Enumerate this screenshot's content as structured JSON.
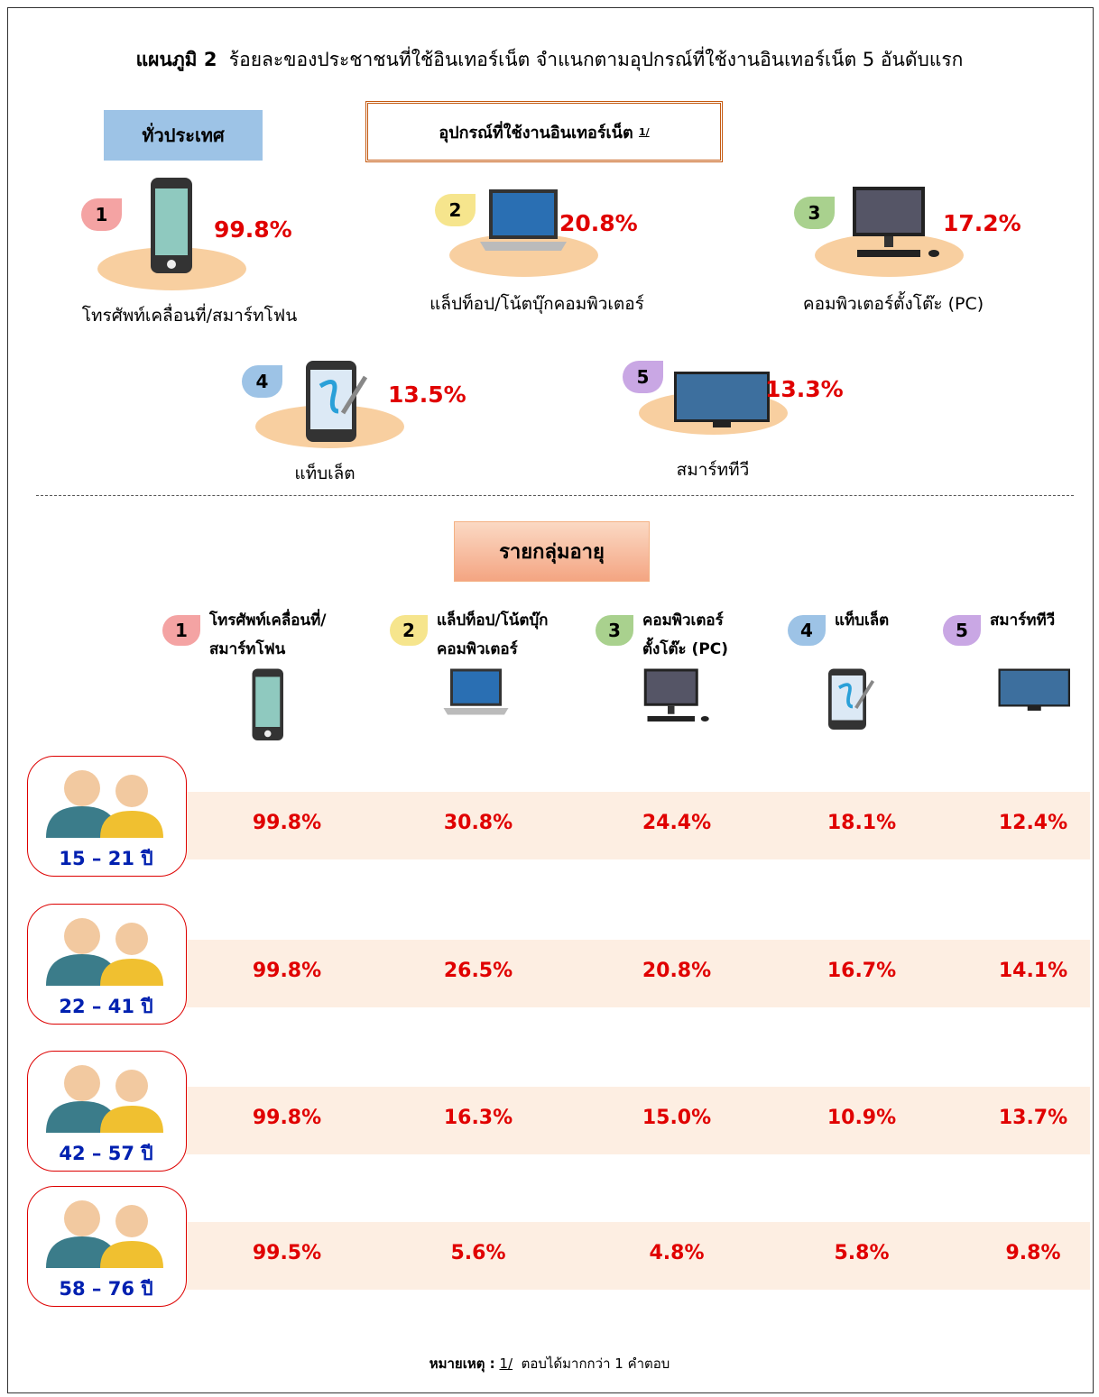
{
  "title": {
    "prefix": "แผนภูมิ 2",
    "text": "ร้อยละของประชาชนที่ใช้อินเทอร์เน็ต  จำแนกตามอุปกรณ์ที่ใช้งานอินเทอร์เน็ต 5 อันดับแรก"
  },
  "national": {
    "label": "ทั่วประเทศ",
    "header": "อุปกรณ์ที่ใช้งานอินเทอร์เน็ต",
    "header_note": "1/",
    "items": [
      {
        "rank": "1",
        "value": "99.8%",
        "name": "โทรศัพท์เคลื่อนที่/สมาร์ทโฟน"
      },
      {
        "rank": "2",
        "value": "20.8%",
        "name": "แล็ปท็อป/โน้ตบุ๊กคอมพิวเตอร์"
      },
      {
        "rank": "3",
        "value": "17.2%",
        "name": "คอมพิวเตอร์ตั้งโต๊ะ (PC)"
      },
      {
        "rank": "4",
        "value": "13.5%",
        "name": "แท็บเล็ต"
      },
      {
        "rank": "5",
        "value": "13.3%",
        "name": "สมาร์ททีวี"
      }
    ]
  },
  "age": {
    "label": "รายกลุ่มอายุ",
    "columns": [
      {
        "rank": "1",
        "name": [
          "โทรศัพท์เคลื่อนที่/",
          "สมาร์ทโฟน"
        ]
      },
      {
        "rank": "2",
        "name": [
          "แล็ปท็อป/โน้ตบุ๊ก",
          "คอมพิวเตอร์"
        ]
      },
      {
        "rank": "3",
        "name": [
          "คอมพิวเตอร์",
          "ตั้งโต๊ะ (PC)"
        ]
      },
      {
        "rank": "4",
        "name": [
          "แท็บเล็ต"
        ]
      },
      {
        "rank": "5",
        "name": [
          "สมาร์ททีวี"
        ]
      }
    ],
    "groups": [
      {
        "label": "15 – 21 ปี",
        "values": [
          "99.8%",
          "30.8%",
          "24.4%",
          "18.1%",
          "12.4%"
        ]
      },
      {
        "label": "22 – 41 ปี",
        "values": [
          "99.8%",
          "26.5%",
          "20.8%",
          "16.7%",
          "14.1%"
        ]
      },
      {
        "label": "42 – 57 ปี",
        "values": [
          "99.8%",
          "16.3%",
          "15.0%",
          "10.9%",
          "13.7%"
        ]
      },
      {
        "label": "58 – 76 ปี",
        "values": [
          "99.5%",
          "5.6%",
          "4.8%",
          "5.8%",
          "9.8%"
        ]
      }
    ]
  },
  "note": {
    "label": "หมายเหตุ :",
    "ref": "1/",
    "text": "ตอบได้มากกว่า 1 คำตอบ"
  }
}
